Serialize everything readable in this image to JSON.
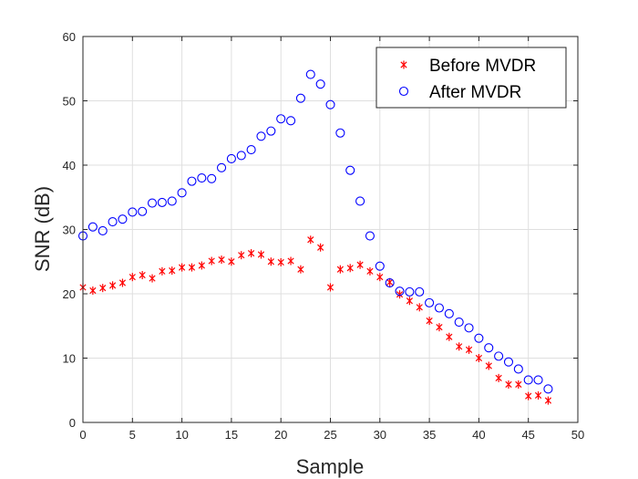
{
  "chart_data": {
    "type": "scatter",
    "title": "",
    "xlabel": "Sample",
    "ylabel": "SNR (dB)",
    "xlim": [
      0,
      50
    ],
    "ylim": [
      0,
      60
    ],
    "xticks": [
      0,
      5,
      10,
      15,
      20,
      25,
      30,
      35,
      40,
      45,
      50
    ],
    "yticks": [
      0,
      10,
      20,
      30,
      40,
      50,
      60
    ],
    "grid": true,
    "legend_position": "top-right",
    "x": [
      0,
      1,
      2,
      3,
      4,
      5,
      6,
      7,
      8,
      9,
      10,
      11,
      12,
      13,
      14,
      15,
      16,
      17,
      18,
      19,
      20,
      21,
      22,
      23,
      24,
      25,
      26,
      27,
      28,
      29,
      30,
      31,
      32,
      33,
      34,
      35,
      36,
      37,
      38,
      39,
      40,
      41,
      42,
      43,
      44,
      45,
      46,
      47
    ],
    "series": [
      {
        "name": "Before MVDR",
        "marker": "asterisk",
        "color": "#ff0000",
        "values": [
          21.0,
          20.5,
          20.9,
          21.3,
          21.7,
          22.6,
          22.9,
          22.4,
          23.5,
          23.6,
          24.1,
          24.1,
          24.4,
          25.1,
          25.3,
          25.0,
          26.0,
          26.3,
          26.1,
          25.0,
          24.9,
          25.1,
          23.8,
          28.4,
          27.2,
          21.0,
          23.8,
          24.0,
          24.5,
          23.5,
          22.6,
          21.8,
          19.9,
          18.9,
          17.9,
          15.8,
          14.8,
          13.3,
          11.8,
          11.3,
          10.0,
          8.8,
          6.9,
          5.9,
          5.9,
          4.1,
          4.2,
          3.4
        ]
      },
      {
        "name": "After MVDR",
        "marker": "open-circle",
        "color": "#0000ff",
        "values": [
          29.0,
          30.4,
          29.8,
          31.2,
          31.6,
          32.7,
          32.8,
          34.1,
          34.2,
          34.4,
          35.7,
          37.5,
          38.0,
          37.9,
          39.6,
          41.0,
          41.5,
          42.4,
          44.5,
          45.3,
          47.2,
          46.9,
          50.4,
          54.1,
          52.6,
          49.4,
          45.0,
          39.2,
          34.4,
          29.0,
          24.3,
          21.7,
          20.4,
          20.3,
          20.3,
          18.6,
          17.8,
          16.9,
          15.6,
          14.7,
          13.1,
          11.6,
          10.3,
          9.4,
          8.3,
          6.6,
          6.6,
          5.2
        ]
      }
    ]
  }
}
